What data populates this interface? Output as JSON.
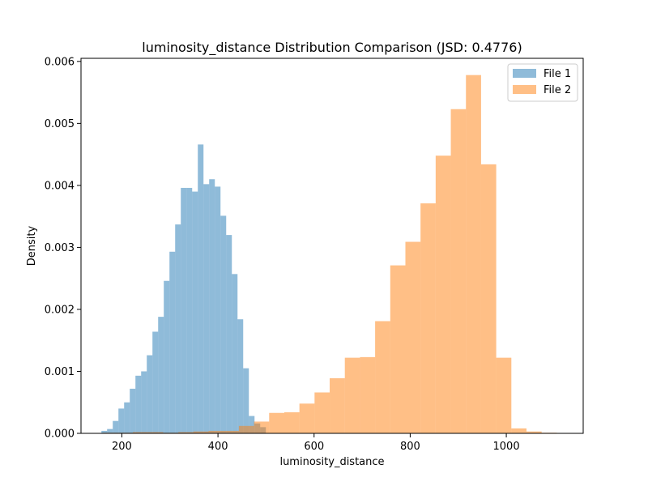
{
  "chart_data": {
    "type": "bar",
    "title": "luminosity_distance Distribution Comparison (JSD: 0.4776)",
    "xlabel": "luminosity_distance",
    "ylabel": "Density",
    "xlim": [
      115,
      1160
    ],
    "ylim": [
      0,
      0.00605
    ],
    "x_ticks": [
      200,
      400,
      600,
      800,
      1000
    ],
    "y_ticks": [
      0.0,
      0.001,
      0.002,
      0.003,
      0.004,
      0.005,
      0.006
    ],
    "y_tick_labels": [
      "0.000",
      "0.001",
      "0.002",
      "0.003",
      "0.004",
      "0.005",
      "0.006"
    ],
    "legend_position": "top-right",
    "grid": false,
    "series": [
      {
        "name": "File 1",
        "color": "#1f77b4",
        "opacity": 0.5,
        "bin_start": 157.5,
        "bin_width": 11.8,
        "values": [
          4e-05,
          7e-05,
          0.0002,
          0.0004,
          0.0005,
          0.00072,
          0.00093,
          0.001,
          0.00126,
          0.00164,
          0.00188,
          0.00246,
          0.00293,
          0.00337,
          0.00396,
          0.00396,
          0.0039,
          0.00466,
          0.00402,
          0.0041,
          0.00398,
          0.00351,
          0.0032,
          0.00257,
          0.00184,
          0.00105,
          0.00028,
          0.00016,
          0.0001
        ]
      },
      {
        "name": "File 2",
        "color": "#ff7f0e",
        "opacity": 0.5,
        "bin_start": 160,
        "bin_width": 31.5,
        "values": [
          1e-05,
          1e-05,
          2e-05,
          2e-05,
          1e-05,
          2e-05,
          3e-05,
          4e-05,
          4e-05,
          0.00012,
          0.00019,
          0.00033,
          0.00034,
          0.00048,
          0.00066,
          0.00089,
          0.00122,
          0.00123,
          0.00181,
          0.00271,
          0.00309,
          0.00371,
          0.00448,
          0.00523,
          0.00578,
          0.00434,
          0.00122,
          8e-05,
          3e-05,
          1e-05
        ]
      }
    ]
  }
}
